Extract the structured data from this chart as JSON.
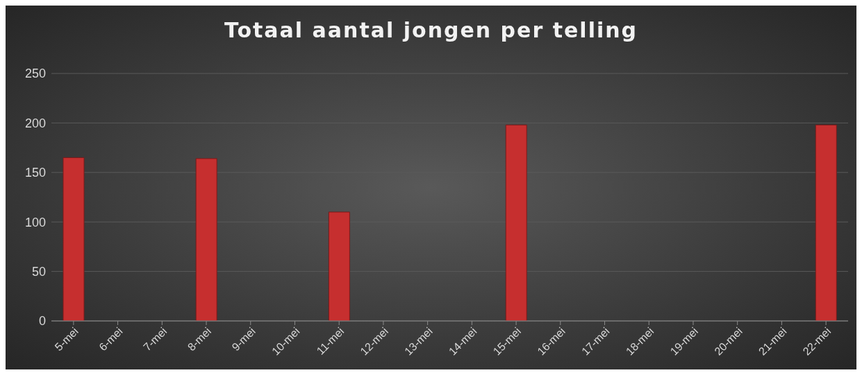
{
  "chart_data": {
    "type": "bar",
    "title": "Totaal aantal jongen per telling",
    "categories": [
      "5-mei",
      "6-mei",
      "7-mei",
      "8-mei",
      "9-mei",
      "10-mei",
      "11-mei",
      "12-mei",
      "13-mei",
      "14-mei",
      "15-mei",
      "16-mei",
      "17-mei",
      "18-mei",
      "19-mei",
      "20-mei",
      "21-mei",
      "22-mei"
    ],
    "values": [
      165,
      null,
      null,
      164,
      null,
      null,
      110,
      null,
      null,
      null,
      198,
      null,
      null,
      null,
      null,
      null,
      null,
      198
    ],
    "color": "#c62f2f",
    "ylim": [
      0,
      250
    ],
    "yticks": [
      0,
      50,
      100,
      150,
      200,
      250
    ],
    "grid": "y",
    "legend": false
  }
}
